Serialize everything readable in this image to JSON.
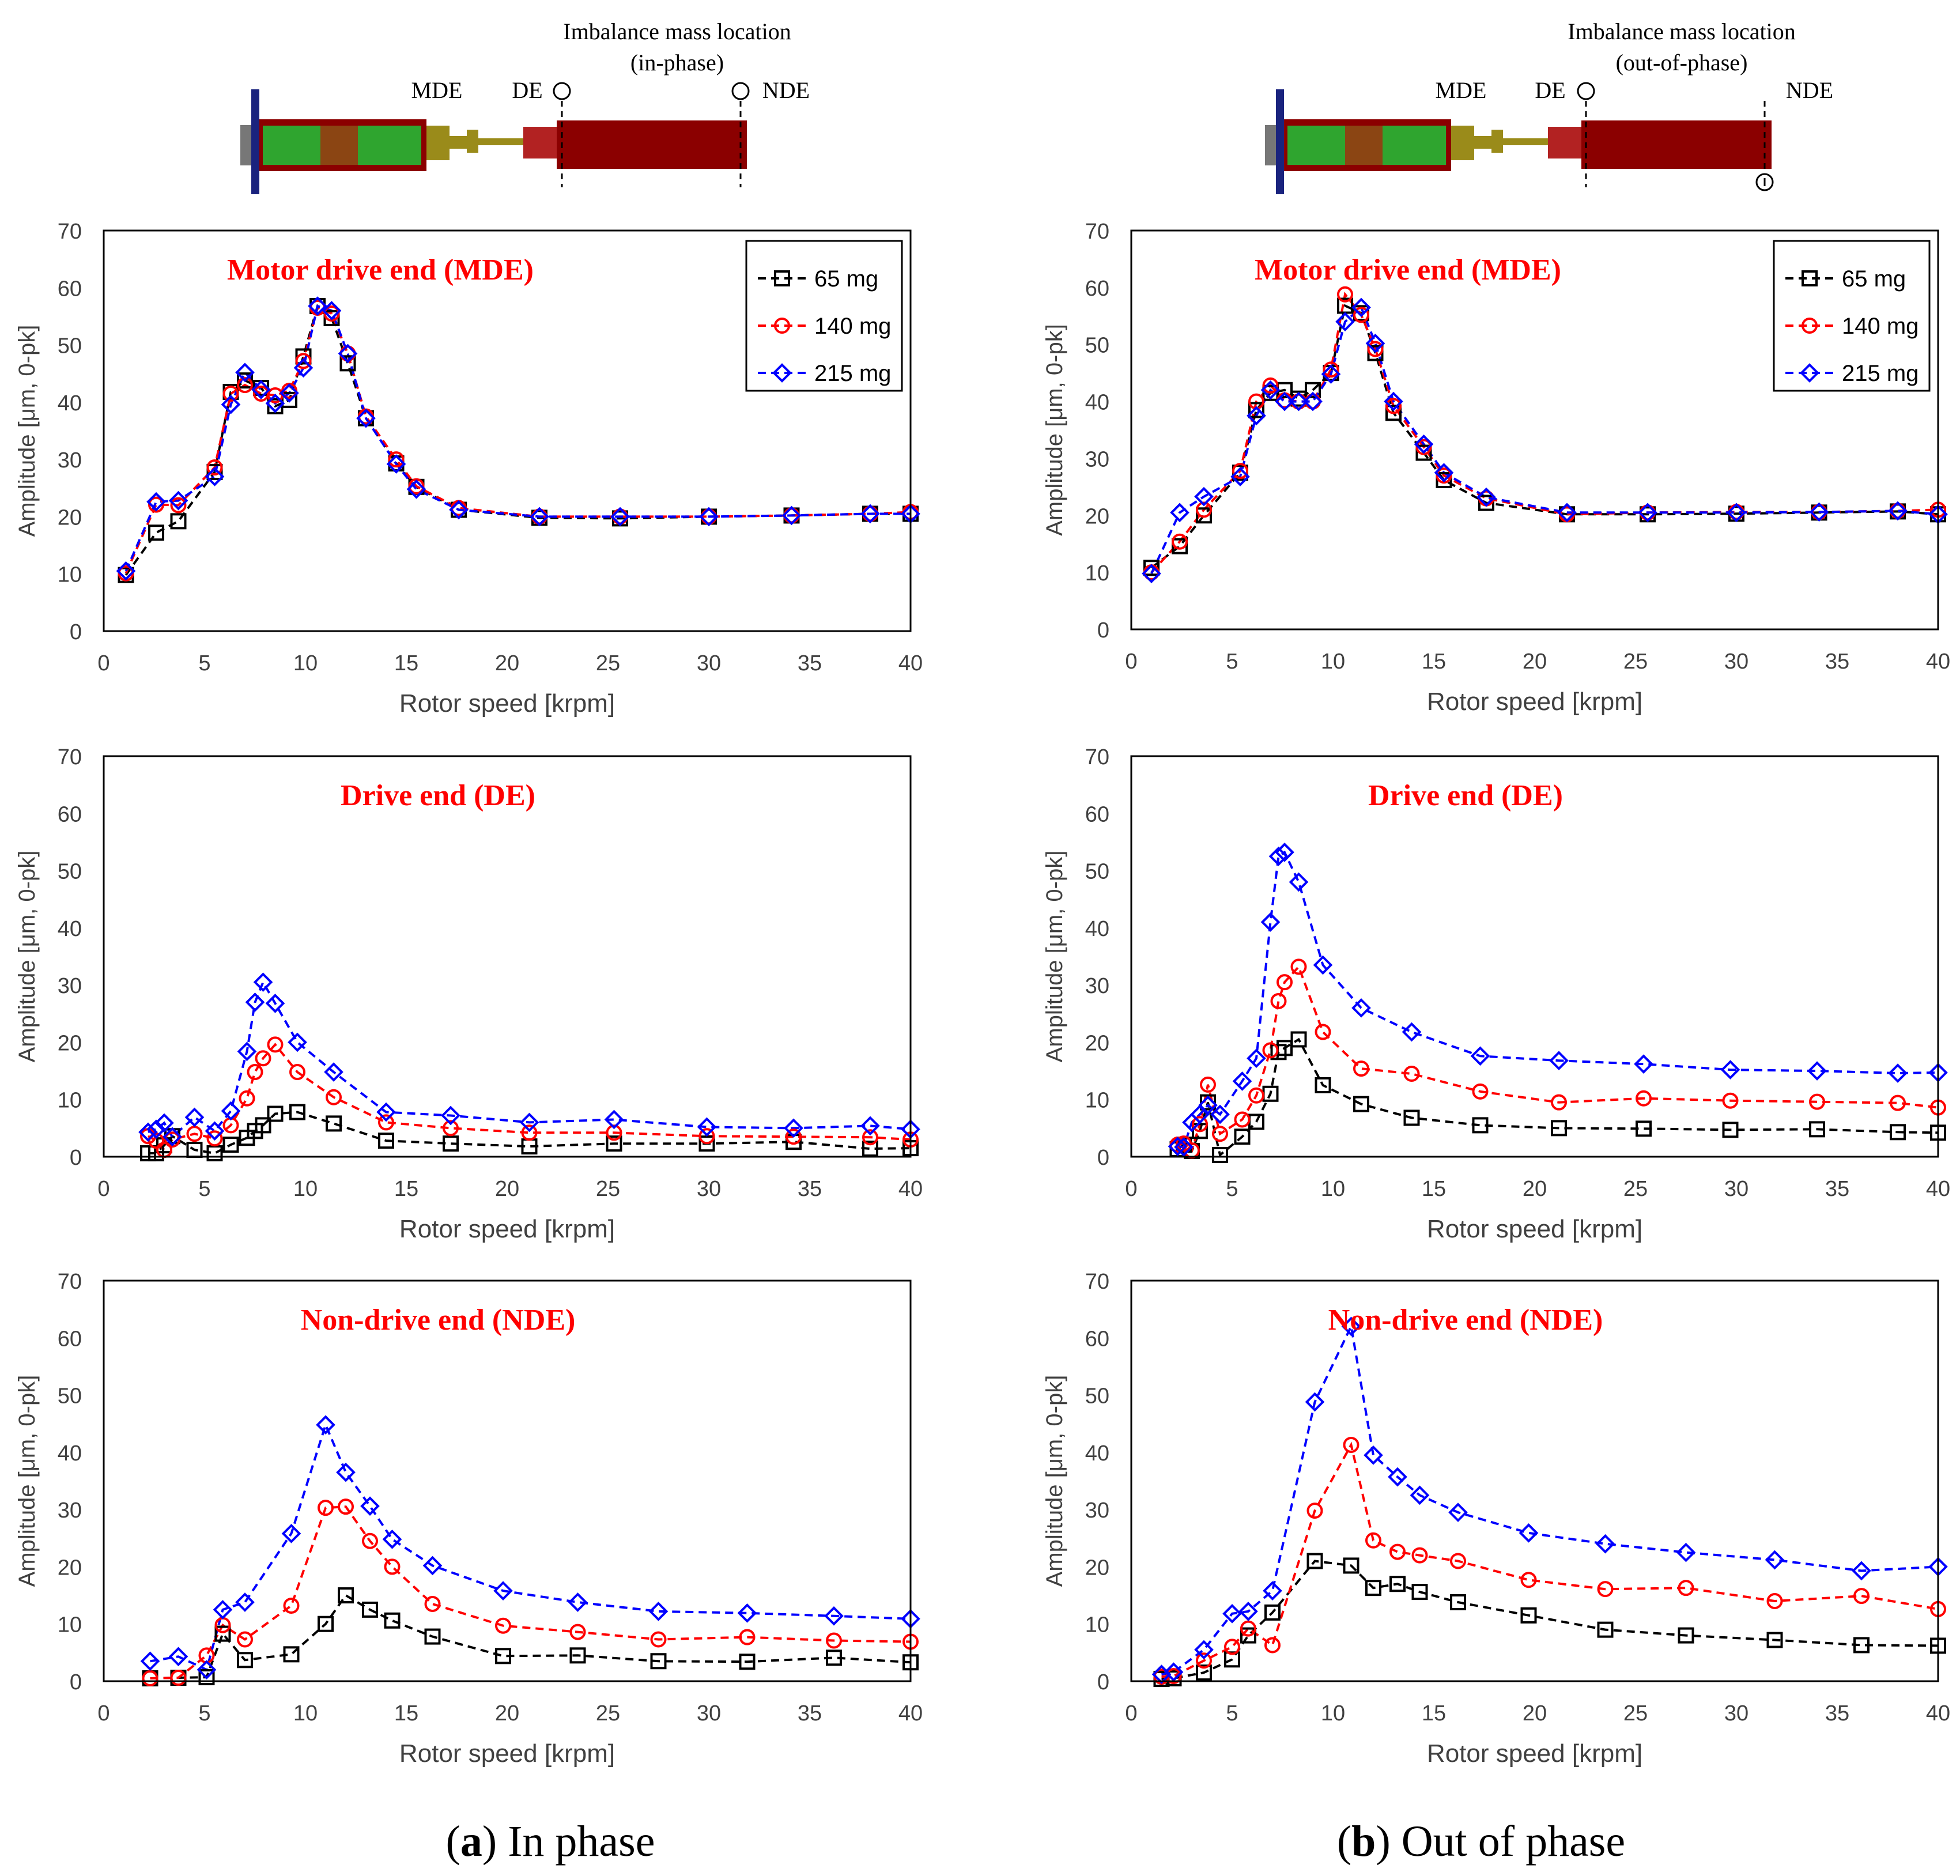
{
  "figure": {
    "columns": [
      {
        "rotor_diagram": {
          "title_line1": "Imbalance mass location",
          "title_line2": "(in-phase)",
          "label_mde": "MDE",
          "label_de": "DE",
          "label_nde": "NDE",
          "mass_positions": [
            "DE-top",
            "NDE-top"
          ]
        },
        "caption_letter": "a",
        "caption_text": " In phase"
      },
      {
        "rotor_diagram": {
          "title_line1": "Imbalance mass location",
          "title_line2": "(out-of-phase)",
          "label_mde": "MDE",
          "label_de": "DE",
          "label_nde": "NDE",
          "mass_positions": [
            "DE-top",
            "NDE-bottom"
          ]
        },
        "caption_letter": "b",
        "caption_text": " Out of phase"
      }
    ],
    "series_style": [
      {
        "name": "65 mg",
        "color": "#000000",
        "marker": "square"
      },
      {
        "name": "140 mg",
        "color": "#ff0000",
        "marker": "circle"
      },
      {
        "name": "215 mg",
        "color": "#0000ff",
        "marker": "diamond"
      }
    ],
    "colors": {
      "title": "#ff0000",
      "frame": "#000000",
      "axis_text": "#404040"
    }
  },
  "chart_data": [
    {
      "panel": "in-phase",
      "type": "line",
      "title": "Motor drive end (MDE)",
      "xlabel": "Rotor speed [krpm]",
      "ylabel": "Amplitude [μm, 0-pk]",
      "xlim": [
        0,
        40
      ],
      "ylim": [
        0,
        70
      ],
      "xticks": [
        0,
        5,
        10,
        15,
        20,
        25,
        30,
        35,
        40
      ],
      "yticks": [
        0,
        10,
        20,
        30,
        40,
        50,
        60,
        70
      ],
      "grid": false,
      "legend": "top-right",
      "series": [
        {
          "name": "65 mg",
          "x": [
            1.1,
            2.6,
            3.7,
            5.5,
            6.3,
            7.0,
            7.8,
            8.5,
            9.2,
            9.9,
            10.6,
            11.3,
            12.1,
            13.0,
            14.5,
            15.5,
            17.6,
            21.6,
            25.6,
            30.0,
            34.1,
            38.0,
            40.0
          ],
          "y": [
            9.8,
            17.2,
            19.2,
            27.8,
            41.8,
            43.8,
            42.5,
            39.3,
            40.4,
            48.0,
            56.8,
            54.7,
            46.8,
            37.2,
            29.3,
            25.2,
            21.2,
            19.8,
            19.7,
            20.0,
            20.2,
            20.5,
            20.5
          ]
        },
        {
          "name": "140 mg",
          "x": [
            1.1,
            2.6,
            3.7,
            5.5,
            6.3,
            7.0,
            7.8,
            8.5,
            9.2,
            9.9,
            10.6,
            11.3,
            12.1,
            13.0,
            14.5,
            15.5,
            17.6,
            21.6,
            25.6,
            30.0,
            34.1,
            38.0,
            40.0
          ],
          "y": [
            10.1,
            22.1,
            22.0,
            28.6,
            41.5,
            43.0,
            41.5,
            41.2,
            42.0,
            47.2,
            56.5,
            55.5,
            48.5,
            37.5,
            30.0,
            25.3,
            21.5,
            20.0,
            20.0,
            20.0,
            20.2,
            20.5,
            20.8
          ]
        },
        {
          "name": "215 mg",
          "x": [
            1.1,
            2.6,
            3.7,
            5.5,
            6.3,
            7.0,
            7.8,
            8.5,
            9.2,
            9.9,
            10.6,
            11.3,
            12.1,
            13.0,
            14.5,
            15.5,
            17.6,
            21.6,
            25.6,
            30.0,
            34.1,
            38.0,
            40.0
          ],
          "y": [
            10.5,
            22.6,
            22.8,
            27.0,
            39.6,
            45.2,
            42.2,
            39.8,
            41.6,
            46.0,
            56.8,
            56.0,
            48.5,
            37.2,
            29.2,
            24.8,
            21.2,
            20.0,
            20.0,
            20.0,
            20.2,
            20.5,
            20.5
          ]
        }
      ]
    },
    {
      "panel": "out-of-phase",
      "type": "line",
      "title": "Motor drive end (MDE)",
      "xlabel": "Rotor speed [krpm]",
      "ylabel": "Amplitude [μm, 0-pk]",
      "xlim": [
        0,
        40
      ],
      "ylim": [
        0,
        70
      ],
      "xticks": [
        0,
        5,
        10,
        15,
        20,
        25,
        30,
        35,
        40
      ],
      "yticks": [
        0,
        10,
        20,
        30,
        40,
        50,
        60,
        70
      ],
      "grid": false,
      "legend": "top-right",
      "series": [
        {
          "name": "65 mg",
          "x": [
            1.0,
            2.4,
            3.6,
            5.4,
            6.2,
            6.9,
            7.6,
            8.3,
            9.0,
            9.9,
            10.6,
            11.4,
            12.1,
            13.0,
            14.5,
            15.5,
            17.6,
            21.6,
            25.6,
            30.0,
            34.1,
            38.0,
            40.0
          ],
          "y": [
            10.8,
            14.6,
            20.0,
            27.5,
            38.5,
            41.5,
            42.0,
            40.5,
            42.0,
            45.0,
            56.8,
            55.5,
            48.5,
            38.0,
            31.0,
            26.2,
            22.2,
            20.2,
            20.2,
            20.3,
            20.5,
            20.7,
            20.2
          ]
        },
        {
          "name": "140 mg",
          "x": [
            1.0,
            2.4,
            3.6,
            5.4,
            6.2,
            6.9,
            7.6,
            8.3,
            9.0,
            9.9,
            10.6,
            11.4,
            12.1,
            13.0,
            14.5,
            15.5,
            17.6,
            21.6,
            25.6,
            30.0,
            34.1,
            38.0,
            40.0
          ],
          "y": [
            10.0,
            15.4,
            21.0,
            27.8,
            40.0,
            42.8,
            40.2,
            40.0,
            40.0,
            45.6,
            58.8,
            55.2,
            49.2,
            39.2,
            32.0,
            27.0,
            23.0,
            20.2,
            20.5,
            20.6,
            20.6,
            20.8,
            21.0
          ]
        },
        {
          "name": "215 mg",
          "x": [
            1.0,
            2.4,
            3.6,
            5.4,
            6.2,
            6.9,
            7.6,
            8.3,
            9.0,
            9.9,
            10.6,
            11.4,
            12.1,
            13.0,
            14.5,
            15.5,
            17.6,
            21.6,
            25.6,
            30.0,
            34.1,
            38.0,
            40.0
          ],
          "y": [
            9.8,
            20.5,
            23.3,
            26.8,
            37.5,
            42.0,
            40.0,
            40.0,
            40.0,
            44.8,
            54.0,
            56.5,
            50.2,
            40.0,
            32.5,
            27.5,
            23.2,
            20.5,
            20.5,
            20.5,
            20.6,
            20.8,
            20.2
          ]
        }
      ]
    },
    {
      "panel": "in-phase",
      "type": "line",
      "title": "Drive end (DE)",
      "xlabel": "Rotor speed [krpm]",
      "ylabel": "Amplitude [μm, 0-pk]",
      "xlim": [
        0,
        40
      ],
      "ylim": [
        0,
        70
      ],
      "xticks": [
        0,
        5,
        10,
        15,
        20,
        25,
        30,
        35,
        40
      ],
      "yticks": [
        0,
        10,
        20,
        30,
        40,
        50,
        60,
        70
      ],
      "grid": false,
      "series": [
        {
          "name": "65 mg",
          "x": [
            2.2,
            2.6,
            3.0,
            3.4,
            4.5,
            5.5,
            6.3,
            7.1,
            7.5,
            7.9,
            8.5,
            9.6,
            11.4,
            14.0,
            17.2,
            21.1,
            25.3,
            29.9,
            34.2,
            38.0,
            40.0
          ],
          "y": [
            0.6,
            0.6,
            2.0,
            3.6,
            1.2,
            0.6,
            2.1,
            3.3,
            4.5,
            5.5,
            7.5,
            7.8,
            5.8,
            2.8,
            2.3,
            1.8,
            2.3,
            2.3,
            2.6,
            1.4,
            1.5
          ]
        },
        {
          "name": "140 mg",
          "x": [
            2.2,
            2.6,
            3.0,
            3.4,
            4.5,
            5.5,
            6.3,
            7.1,
            7.5,
            7.9,
            8.5,
            9.6,
            11.4,
            14.0,
            17.2,
            21.1,
            25.3,
            29.9,
            34.2,
            38.0,
            40.0
          ],
          "y": [
            3.6,
            2.8,
            1.2,
            3.0,
            4.0,
            3.2,
            5.5,
            10.2,
            14.8,
            17.2,
            19.6,
            14.8,
            10.4,
            6.0,
            5.0,
            4.2,
            4.2,
            3.6,
            3.5,
            3.4,
            3.0
          ]
        },
        {
          "name": "215 mg",
          "x": [
            2.2,
            2.6,
            3.0,
            3.4,
            4.5,
            5.5,
            6.3,
            7.1,
            7.5,
            7.9,
            8.5,
            9.6,
            11.4,
            14.0,
            17.2,
            21.1,
            25.3,
            29.9,
            34.2,
            38.0,
            40.0
          ],
          "y": [
            4.3,
            4.8,
            5.9,
            3.5,
            6.9,
            4.5,
            8.0,
            18.4,
            27.0,
            30.5,
            26.8,
            20.0,
            14.8,
            7.8,
            7.2,
            6.0,
            6.5,
            5.2,
            5.0,
            5.4,
            4.8
          ]
        }
      ]
    },
    {
      "panel": "out-of-phase",
      "type": "line",
      "title": "Drive end (DE)",
      "xlabel": "Rotor speed [krpm]",
      "ylabel": "Amplitude [μm, 0-pk]",
      "xlim": [
        0,
        40
      ],
      "ylim": [
        0,
        70
      ],
      "xticks": [
        0,
        5,
        10,
        15,
        20,
        25,
        30,
        35,
        40
      ],
      "yticks": [
        0,
        10,
        20,
        30,
        40,
        50,
        60,
        70
      ],
      "grid": false,
      "series": [
        {
          "name": "65 mg",
          "x": [
            2.3,
            2.6,
            3.0,
            3.4,
            3.8,
            4.4,
            5.5,
            6.2,
            6.9,
            7.3,
            7.6,
            8.3,
            9.5,
            11.4,
            13.9,
            17.3,
            21.2,
            25.4,
            29.7,
            34.0,
            38.0,
            40.0
          ],
          "y": [
            1.3,
            2.1,
            1.0,
            4.5,
            9.5,
            0.3,
            3.5,
            6.1,
            11.0,
            18.3,
            19.0,
            20.5,
            12.5,
            9.2,
            6.8,
            5.5,
            5.0,
            4.9,
            4.7,
            4.8,
            4.3,
            4.2
          ]
        },
        {
          "name": "140 mg",
          "x": [
            2.3,
            2.6,
            3.0,
            3.4,
            3.8,
            4.4,
            5.5,
            6.2,
            6.9,
            7.3,
            7.6,
            8.3,
            9.5,
            11.4,
            13.9,
            17.3,
            21.2,
            25.4,
            29.7,
            34.0,
            38.0,
            40.0
          ],
          "y": [
            2.1,
            2.3,
            1.1,
            5.7,
            12.6,
            4.0,
            6.5,
            10.7,
            18.6,
            27.2,
            30.5,
            33.2,
            21.8,
            15.4,
            14.5,
            11.4,
            9.5,
            10.2,
            9.8,
            9.6,
            9.4,
            8.6
          ]
        },
        {
          "name": "215 mg",
          "x": [
            2.3,
            2.6,
            3.0,
            3.4,
            3.8,
            4.4,
            5.5,
            6.2,
            6.9,
            7.3,
            7.6,
            8.3,
            9.5,
            11.4,
            13.9,
            17.3,
            21.2,
            25.4,
            29.7,
            34.0,
            38.0,
            40.0
          ],
          "y": [
            1.8,
            1.7,
            6.0,
            7.4,
            9.0,
            7.4,
            13.2,
            17.2,
            41.0,
            52.5,
            53.2,
            48.0,
            33.5,
            26.0,
            21.8,
            17.6,
            16.8,
            16.2,
            15.2,
            15.0,
            14.6,
            14.7
          ]
        }
      ]
    },
    {
      "panel": "in-phase",
      "type": "line",
      "title": "Non-drive end (NDE)",
      "xlabel": "Rotor speed [krpm]",
      "ylabel": "Amplitude [μm, 0-pk]",
      "xlim": [
        0,
        40
      ],
      "ylim": [
        0,
        70
      ],
      "xticks": [
        0,
        5,
        10,
        15,
        20,
        25,
        30,
        35,
        40
      ],
      "yticks": [
        0,
        10,
        20,
        30,
        40,
        50,
        60,
        70
      ],
      "grid": false,
      "series": [
        {
          "name": "65 mg",
          "x": [
            2.3,
            3.7,
            5.1,
            5.9,
            7.0,
            9.3,
            11.0,
            12.0,
            13.2,
            14.3,
            16.3,
            19.8,
            23.5,
            27.5,
            31.9,
            36.2,
            40.0
          ],
          "y": [
            0.5,
            0.6,
            0.7,
            8.3,
            3.7,
            4.7,
            10.0,
            15.0,
            12.5,
            10.6,
            7.8,
            4.4,
            4.5,
            3.5,
            3.4,
            4.1,
            3.3
          ]
        },
        {
          "name": "140 mg",
          "x": [
            2.3,
            3.7,
            5.1,
            5.9,
            7.0,
            9.3,
            11.0,
            12.0,
            13.2,
            14.3,
            16.3,
            19.8,
            23.5,
            27.5,
            31.9,
            36.2,
            40.0
          ],
          "y": [
            0.5,
            0.6,
            4.5,
            9.8,
            7.3,
            13.2,
            30.3,
            30.5,
            24.5,
            20.0,
            13.5,
            9.7,
            8.6,
            7.3,
            7.7,
            7.1,
            6.9
          ]
        },
        {
          "name": "215 mg",
          "x": [
            2.3,
            3.7,
            5.1,
            5.9,
            7.0,
            9.3,
            11.0,
            12.0,
            13.2,
            14.3,
            16.3,
            19.8,
            23.5,
            27.5,
            31.9,
            36.2,
            40.0
          ],
          "y": [
            3.5,
            4.3,
            2.0,
            12.5,
            13.8,
            25.8,
            44.8,
            36.5,
            30.6,
            24.8,
            20.2,
            15.8,
            13.8,
            12.2,
            11.9,
            11.4,
            10.9
          ]
        }
      ]
    },
    {
      "panel": "out-of-phase",
      "type": "line",
      "title": "Non-drive end (NDE)",
      "xlabel": "Rotor speed [krpm]",
      "ylabel": "Amplitude [μm, 0-pk]",
      "xlim": [
        0,
        40
      ],
      "ylim": [
        0,
        70
      ],
      "xticks": [
        0,
        5,
        10,
        15,
        20,
        25,
        30,
        35,
        40
      ],
      "yticks": [
        0,
        10,
        20,
        30,
        40,
        50,
        60,
        70
      ],
      "grid": false,
      "series": [
        {
          "name": "65 mg",
          "x": [
            1.5,
            2.1,
            3.6,
            5.0,
            5.8,
            7.0,
            9.1,
            10.9,
            12.0,
            13.2,
            14.3,
            16.2,
            19.7,
            23.5,
            27.5,
            31.9,
            36.2,
            40.0
          ],
          "y": [
            0.4,
            0.5,
            1.5,
            3.8,
            8.0,
            12.0,
            21.0,
            20.2,
            16.3,
            17.0,
            15.6,
            13.8,
            11.5,
            9.0,
            8.0,
            7.2,
            6.3,
            6.2
          ]
        },
        {
          "name": "140 mg",
          "x": [
            1.5,
            2.1,
            3.6,
            5.0,
            5.8,
            7.0,
            9.1,
            10.9,
            12.0,
            13.2,
            14.3,
            16.2,
            19.7,
            23.5,
            27.5,
            31.9,
            36.2,
            40.0
          ],
          "y": [
            0.8,
            0.9,
            3.6,
            6.0,
            9.2,
            6.3,
            29.8,
            41.3,
            24.6,
            22.6,
            22.0,
            21.0,
            17.7,
            16.1,
            16.3,
            14.0,
            14.9,
            12.6
          ]
        },
        {
          "name": "215 mg",
          "x": [
            1.5,
            2.1,
            3.6,
            5.0,
            5.8,
            7.0,
            9.1,
            10.9,
            12.0,
            13.2,
            14.3,
            16.2,
            19.7,
            23.5,
            27.5,
            31.9,
            36.2,
            40.0
          ],
          "y": [
            1.2,
            1.6,
            5.5,
            11.8,
            12.2,
            15.8,
            48.8,
            62.0,
            39.5,
            35.7,
            32.5,
            29.5,
            25.9,
            24.0,
            22.5,
            21.2,
            19.3,
            20.0
          ]
        }
      ]
    }
  ]
}
